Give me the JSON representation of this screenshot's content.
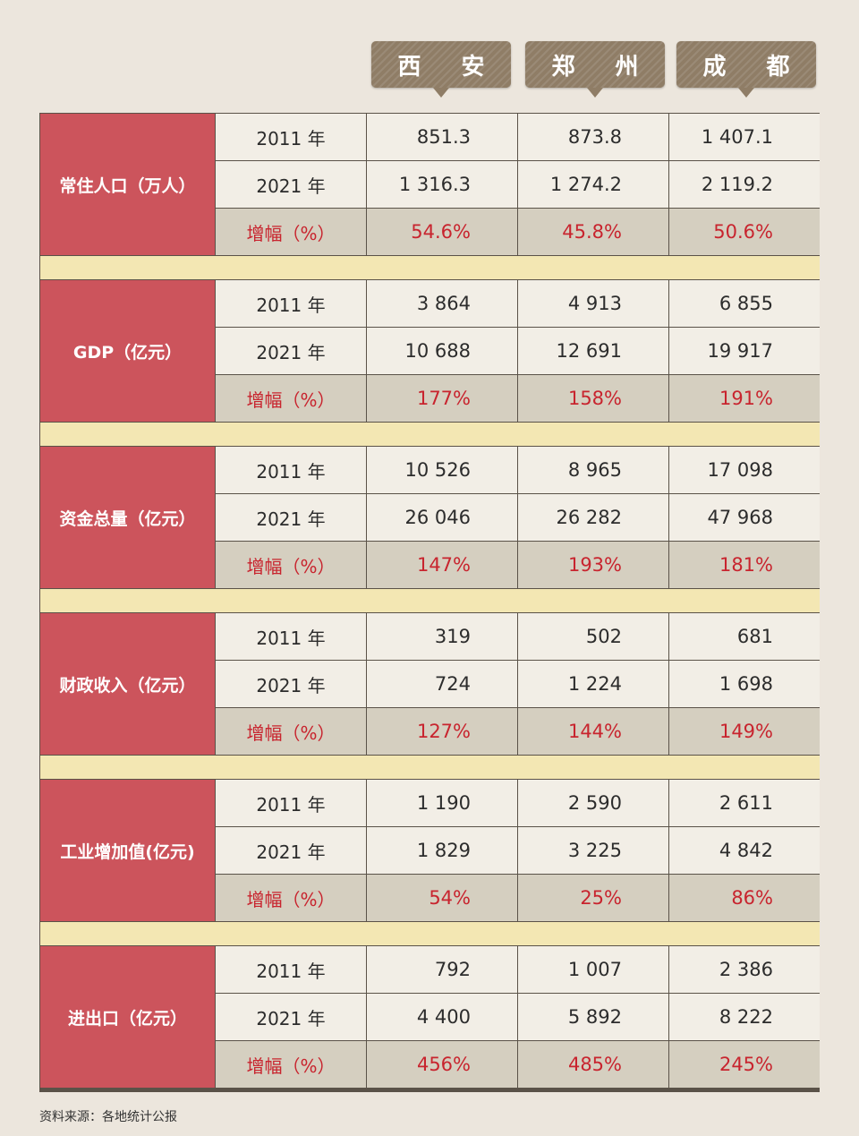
{
  "cities": [
    "西 安",
    "郑 州",
    "成 都"
  ],
  "rows": [
    {
      "category": "常住人口（万人）",
      "year1": "2011 年",
      "v1": [
        "851.3",
        "873.8",
        "1 407.1"
      ],
      "year2": "2021 年",
      "v2": [
        "1 316.3",
        "1 274.2",
        "2 119.2"
      ],
      "growth_label": "增幅（%）",
      "growth": [
        "54.6%",
        "45.8%",
        "50.6%"
      ]
    },
    {
      "category": "GDP（亿元）",
      "year1": "2011 年",
      "v1": [
        "3 864",
        "4 913",
        "6 855"
      ],
      "year2": "2021 年",
      "v2": [
        "10 688",
        "12 691",
        "19 917"
      ],
      "growth_label": "增幅（%）",
      "growth": [
        "177%",
        "158%",
        "191%"
      ]
    },
    {
      "category": "资金总量（亿元）",
      "year1": "2011 年",
      "v1": [
        "10 526",
        "8 965",
        "17 098"
      ],
      "year2": "2021 年",
      "v2": [
        "26 046",
        "26 282",
        "47 968"
      ],
      "growth_label": "增幅（%）",
      "growth": [
        "147%",
        "193%",
        "181%"
      ]
    },
    {
      "category": "财政收入（亿元）",
      "year1": "2011 年",
      "v1": [
        "319",
        "502",
        "681"
      ],
      "year2": "2021 年",
      "v2": [
        "724",
        "1 224",
        "1 698"
      ],
      "growth_label": "增幅（%）",
      "growth": [
        "127%",
        "144%",
        "149%"
      ]
    },
    {
      "category": "工业增加值(亿元)",
      "year1": "2011 年",
      "v1": [
        "1 190",
        "2 590",
        "2 611"
      ],
      "year2": "2021 年",
      "v2": [
        "1 829",
        "3 225",
        "4 842"
      ],
      "growth_label": "增幅（%）",
      "growth": [
        "54%",
        "25%",
        "86%"
      ]
    },
    {
      "category": "进出口（亿元）",
      "year1": "2011 年",
      "v1": [
        "792",
        "1 007",
        "2 386"
      ],
      "year2": "2021 年",
      "v2": [
        "4 400",
        "5 892",
        "8 222"
      ],
      "growth_label": "增幅（%）",
      "growth": [
        "456%",
        "485%",
        "245%"
      ]
    }
  ],
  "source": "资料来源：各地统计公报",
  "colors": {
    "category_bg": "#cc545c",
    "growth_text": "#c8242e",
    "tag_bg": "#8f7d66",
    "separator": "#f3e7b3"
  }
}
